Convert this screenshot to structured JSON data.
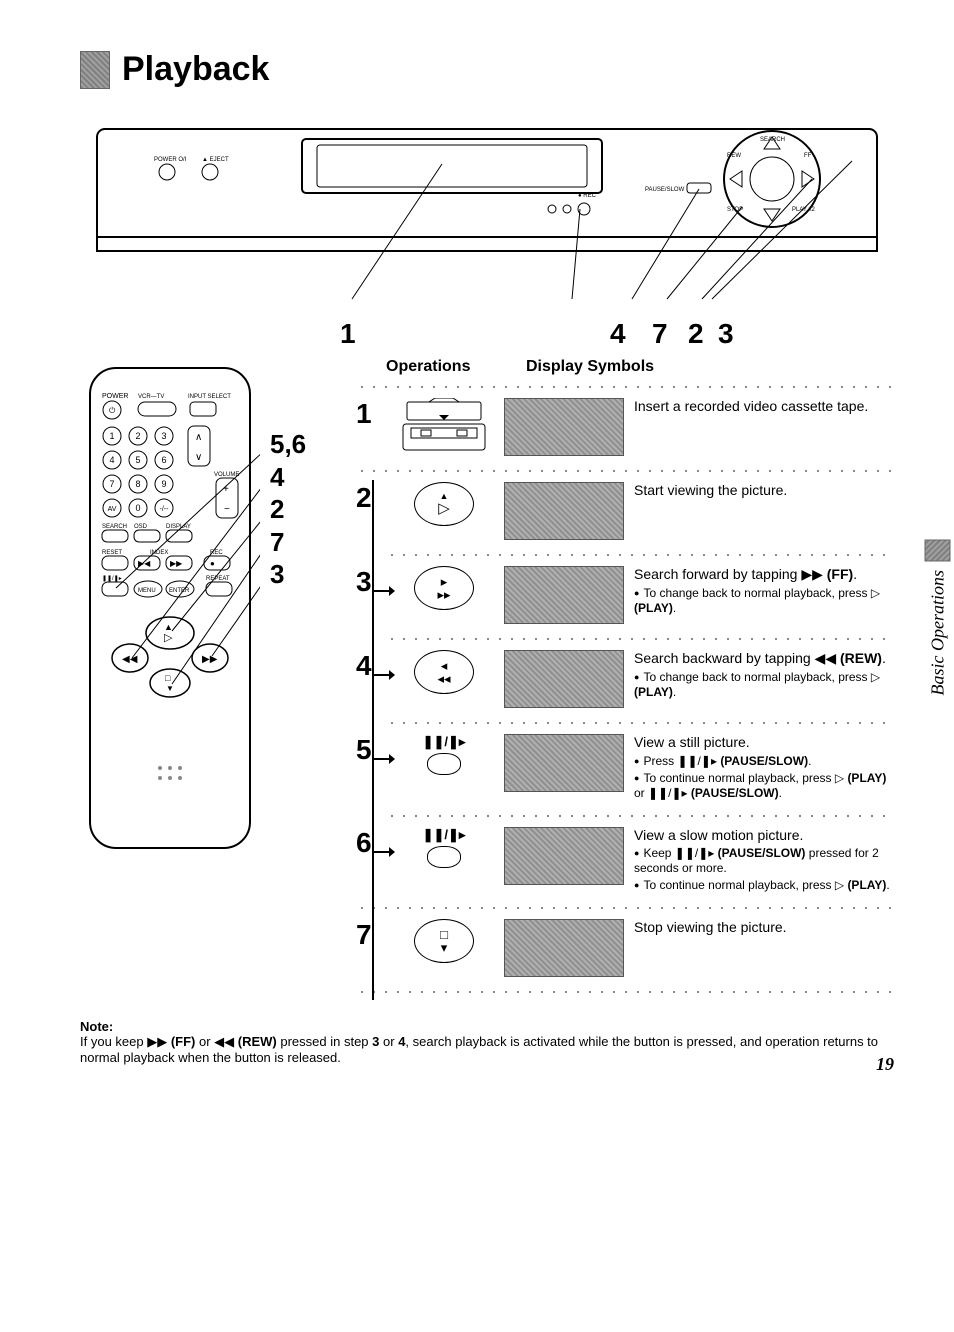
{
  "title": "Playback",
  "side_tab": "Basic Operations",
  "page_number": "19",
  "vcr_callouts": [
    "1",
    "4",
    "7",
    "2",
    "3"
  ],
  "remote_callouts": [
    "5,6",
    "4",
    "2",
    "7",
    "3"
  ],
  "headers": {
    "ops": "Operations",
    "disp": "Display Symbols"
  },
  "remote_labels": {
    "power": "POWER",
    "vcr_tv": "VCR—TV",
    "input": "INPUT SELECT",
    "volume": "VOLUME",
    "search": "SEARCH",
    "osd": "OSD",
    "display": "DISPLAY",
    "reset": "RESET",
    "index": "INDEX",
    "rec": "REC",
    "menu": "MENU",
    "enter": "ENTER",
    "repeat": "REPEAT"
  },
  "steps": [
    {
      "n": "1",
      "op": "cassette",
      "desc": "Insert a recorded video cassette tape.",
      "subs": [],
      "full_divider": true
    },
    {
      "n": "2",
      "op": "play-oval",
      "desc": "Start viewing the picture.",
      "subs": [],
      "full_divider": false
    },
    {
      "n": "3",
      "op": "ff-oval",
      "desc_html": "Search forward by tapping ▶▶ <b>(FF)</b>.",
      "subs": [
        "To change back to normal playback, press ▷ <b>(PLAY)</b>."
      ],
      "arrow": true,
      "full_divider": false
    },
    {
      "n": "4",
      "op": "rew-oval",
      "desc_html": "Search backward by tapping ◀◀ <b>(REW)</b>.",
      "subs": [
        "To change back to normal playback, press ▷ <b>(PLAY)</b>."
      ],
      "arrow": true,
      "full_divider": false
    },
    {
      "n": "5",
      "op": "pause",
      "desc": "View a still picture.",
      "subs": [
        "Press ❚❚/❚▸ <b>(PAUSE/SLOW)</b>.",
        "To continue normal playback, press ▷ <b>(PLAY)</b> or ❚❚/❚▸ <b>(PAUSE/SLOW)</b>."
      ],
      "arrow": true,
      "full_divider": false
    },
    {
      "n": "6",
      "op": "pause",
      "desc": "View a slow motion picture.",
      "subs": [
        "Keep ❚❚/❚▸ <b>(PAUSE/SLOW)</b> pressed for 2 seconds or more.",
        "To continue normal playback, press ▷ <b>(PLAY)</b>."
      ],
      "arrow": true,
      "full_divider": true
    },
    {
      "n": "7",
      "op": "stop-oval",
      "desc": "Stop viewing the picture.",
      "subs": [],
      "full_divider": true
    }
  ],
  "note": {
    "heading": "Note:",
    "body": "If you keep ▶▶ <b>(FF)</b> or ◀◀ <b>(REW)</b> pressed in step <b>3</b> or <b>4</b>, search playback is activated while the button is pressed, and operation returns to normal playback when the button is released."
  },
  "icons": {
    "play": "△̲",
    "ff_top": "▸",
    "ff_bot": "▸▸",
    "rew_top": "◂",
    "rew_bot": "◂◂",
    "pause_lbl": "❚❚/❚▸",
    "stop_top": "□",
    "stop_bot": "▾"
  },
  "colors": {
    "text": "#000000",
    "bg": "#ffffff",
    "halftone_a": "#909090",
    "halftone_b": "#b0b0b0"
  }
}
